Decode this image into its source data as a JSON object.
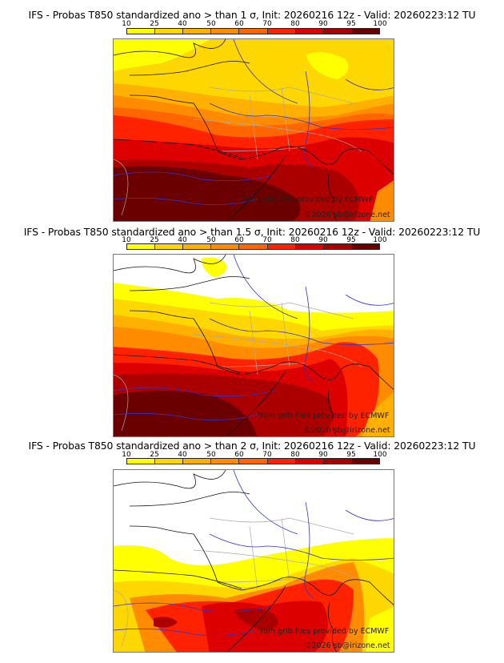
{
  "colorbar": {
    "ticks": [
      "10",
      "25",
      "40",
      "50",
      "60",
      "70",
      "80",
      "90",
      "95",
      "100"
    ],
    "colors": [
      "#ffff00",
      "#ffd700",
      "#ffb000",
      "#ff8c00",
      "#ff6600",
      "#ff2200",
      "#dd0000",
      "#aa0000",
      "#6a0000"
    ]
  },
  "panels": [
    {
      "title": "IFS - Probas T850  standardized ano > than 1 σ, Init: 20260216 12z - Valid: 20260223:12 TU",
      "threshold_sigma": 1,
      "credit_source": "from grib files provided by ECMWF",
      "credit_copyright": "©2026 sb@irizone.net"
    },
    {
      "title": "IFS - Probas T850  standardized ano > than 1.5 σ, Init: 20260216 12z - Valid: 20260223:12 TU",
      "threshold_sigma": 1.5,
      "credit_source": "from grib files provided by ECMWF",
      "credit_copyright": "©2026 sb@irizone.net"
    },
    {
      "title": "IFS - Probas T850  standardized ano > than 2 σ, Init: 20260216 12z - Valid: 20260223:12 TU",
      "threshold_sigma": 2,
      "credit_source": "from grib files provided by ECMWF",
      "credit_copyright": "©2026 sb@irizone.net"
    }
  ],
  "colors": {
    "coastline": "#111111",
    "rivers": "#3333cc",
    "borders": "#aaaaaa"
  }
}
